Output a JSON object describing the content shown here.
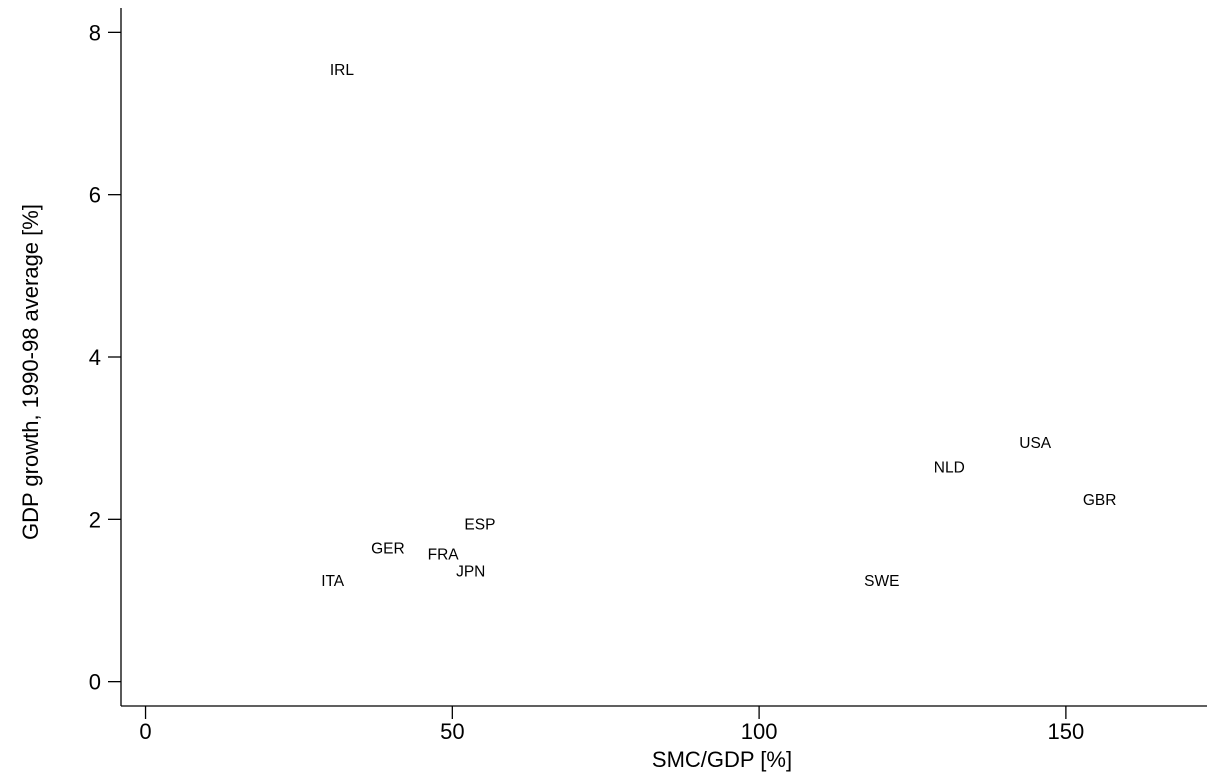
{
  "chart_data": {
    "type": "scatter",
    "title": "",
    "xlabel": "SMC/GDP [%]",
    "ylabel": "GDP growth, 1990-98 average [%]",
    "xlim": [
      -4,
      173
    ],
    "ylim": [
      -0.3,
      8.3
    ],
    "xticks": [
      0,
      50,
      100,
      150
    ],
    "yticks": [
      0,
      2,
      4,
      6,
      8
    ],
    "grid": false,
    "legend": "none",
    "marker": "text-label",
    "points": [
      {
        "label": "IRL",
        "x": 32,
        "y": 7.55
      },
      {
        "label": "USA",
        "x": 145,
        "y": 2.95
      },
      {
        "label": "NLD",
        "x": 131,
        "y": 2.65
      },
      {
        "label": "GBR",
        "x": 155.5,
        "y": 2.25
      },
      {
        "label": "ESP",
        "x": 54.5,
        "y": 1.95
      },
      {
        "label": "GER",
        "x": 39.5,
        "y": 1.65
      },
      {
        "label": "FRA",
        "x": 48.5,
        "y": 1.58
      },
      {
        "label": "JPN",
        "x": 53,
        "y": 1.37
      },
      {
        "label": "ITA",
        "x": 30.5,
        "y": 1.25
      },
      {
        "label": "SWE",
        "x": 120,
        "y": 1.25
      }
    ]
  }
}
